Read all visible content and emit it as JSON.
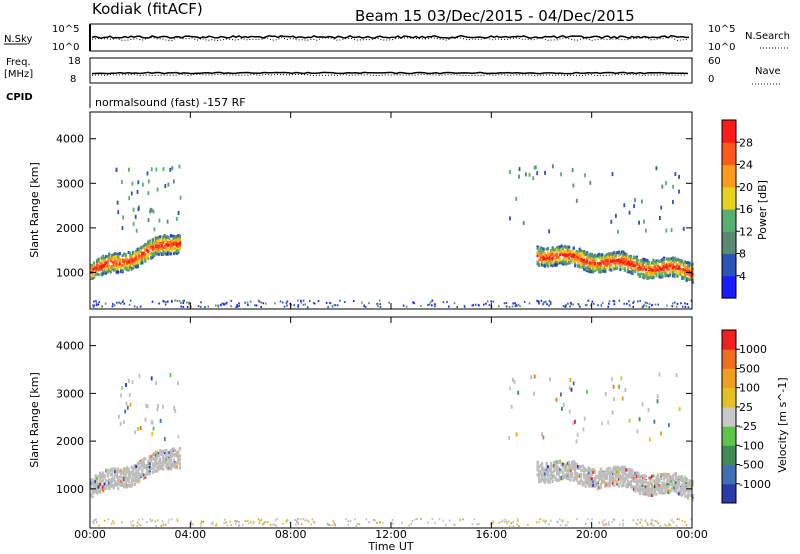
{
  "header": {
    "station": "Kodiak (fitACF)",
    "beam_and_dates": "Beam 15  03/Dec/2015 - 04/Dec/2015"
  },
  "top_panels": {
    "nsky_label": "N.Sky",
    "nsky_ticks": [
      "10^5",
      "10^0"
    ],
    "nsearch_label": "N.Search",
    "nsearch_ticks": [
      "10^5",
      "10^0"
    ],
    "freq_label": "Freq.",
    "freq_unit": "[MHz]",
    "freq_ticks": [
      "18",
      "8"
    ],
    "nave_label": "Nave",
    "nave_ticks": [
      "60",
      "0"
    ],
    "cpid_label": "CPID",
    "cpid_text": "normalsound (fast) -157 RF"
  },
  "colors": {
    "power_scale": [
      "#1a1aff",
      "#2a55b8",
      "#5b8a73",
      "#57b070",
      "#e6d41c",
      "#ff9a1a",
      "#ff5a1a",
      "#ff1a1a"
    ],
    "velocity_scale": [
      "#2a3aa8",
      "#3f6fb8",
      "#3f8a55",
      "#5fc44a",
      "#c8c8c8",
      "#e6c020",
      "#f0a020",
      "#f07020",
      "#f02020"
    ],
    "ground_scatter": "#bdbdbd"
  },
  "chart_data": [
    {
      "type": "heatmap",
      "title": "Power",
      "xlabel": "",
      "ylabel": "Slant Range [km]",
      "x_ticks": [
        "00:00",
        "04:00",
        "08:00",
        "12:00",
        "16:00",
        "20:00",
        "00:00"
      ],
      "xlim_hours": [
        0,
        24
      ],
      "y_ticks": [
        "4000",
        "3000",
        "2000",
        "1000"
      ],
      "ylim": [
        180,
        4600
      ],
      "colorbar": {
        "label": "Power [dB]",
        "ticks": [
          "28",
          "24",
          "20",
          "16",
          "12",
          "8",
          "4"
        ],
        "range": [
          0,
          32
        ]
      },
      "features": [
        {
          "t_start": 0.0,
          "t_end": 3.6,
          "range_start": 1000,
          "range_end": 1700,
          "level": "high"
        },
        {
          "t_start": 17.8,
          "t_end": 24.0,
          "range_start": 1400,
          "range_end": 1000,
          "level": "high"
        }
      ]
    },
    {
      "type": "heatmap",
      "title": "Velocity",
      "xlabel": "Time UT",
      "ylabel": "Slant Range [km]",
      "x_ticks": [
        "00:00",
        "04:00",
        "08:00",
        "12:00",
        "16:00",
        "20:00",
        "00:00"
      ],
      "xlim_hours": [
        0,
        24
      ],
      "y_ticks": [
        "4000",
        "3000",
        "2000",
        "1000"
      ],
      "ylim": [
        180,
        4600
      ],
      "colorbar": {
        "label": "Velocity [m s^-1]",
        "ticks": [
          "1000",
          "500",
          "100",
          "25",
          "-25",
          "-100",
          "-500",
          "-1000"
        ],
        "range": [
          -1000,
          1000
        ]
      },
      "features": [
        {
          "t_start": 0.0,
          "t_end": 3.6,
          "range_start": 1000,
          "range_end": 1700,
          "level": "ground_scatter"
        },
        {
          "t_start": 17.8,
          "t_end": 24.0,
          "range_start": 1400,
          "range_end": 1000,
          "level": "ground_scatter"
        }
      ]
    }
  ]
}
